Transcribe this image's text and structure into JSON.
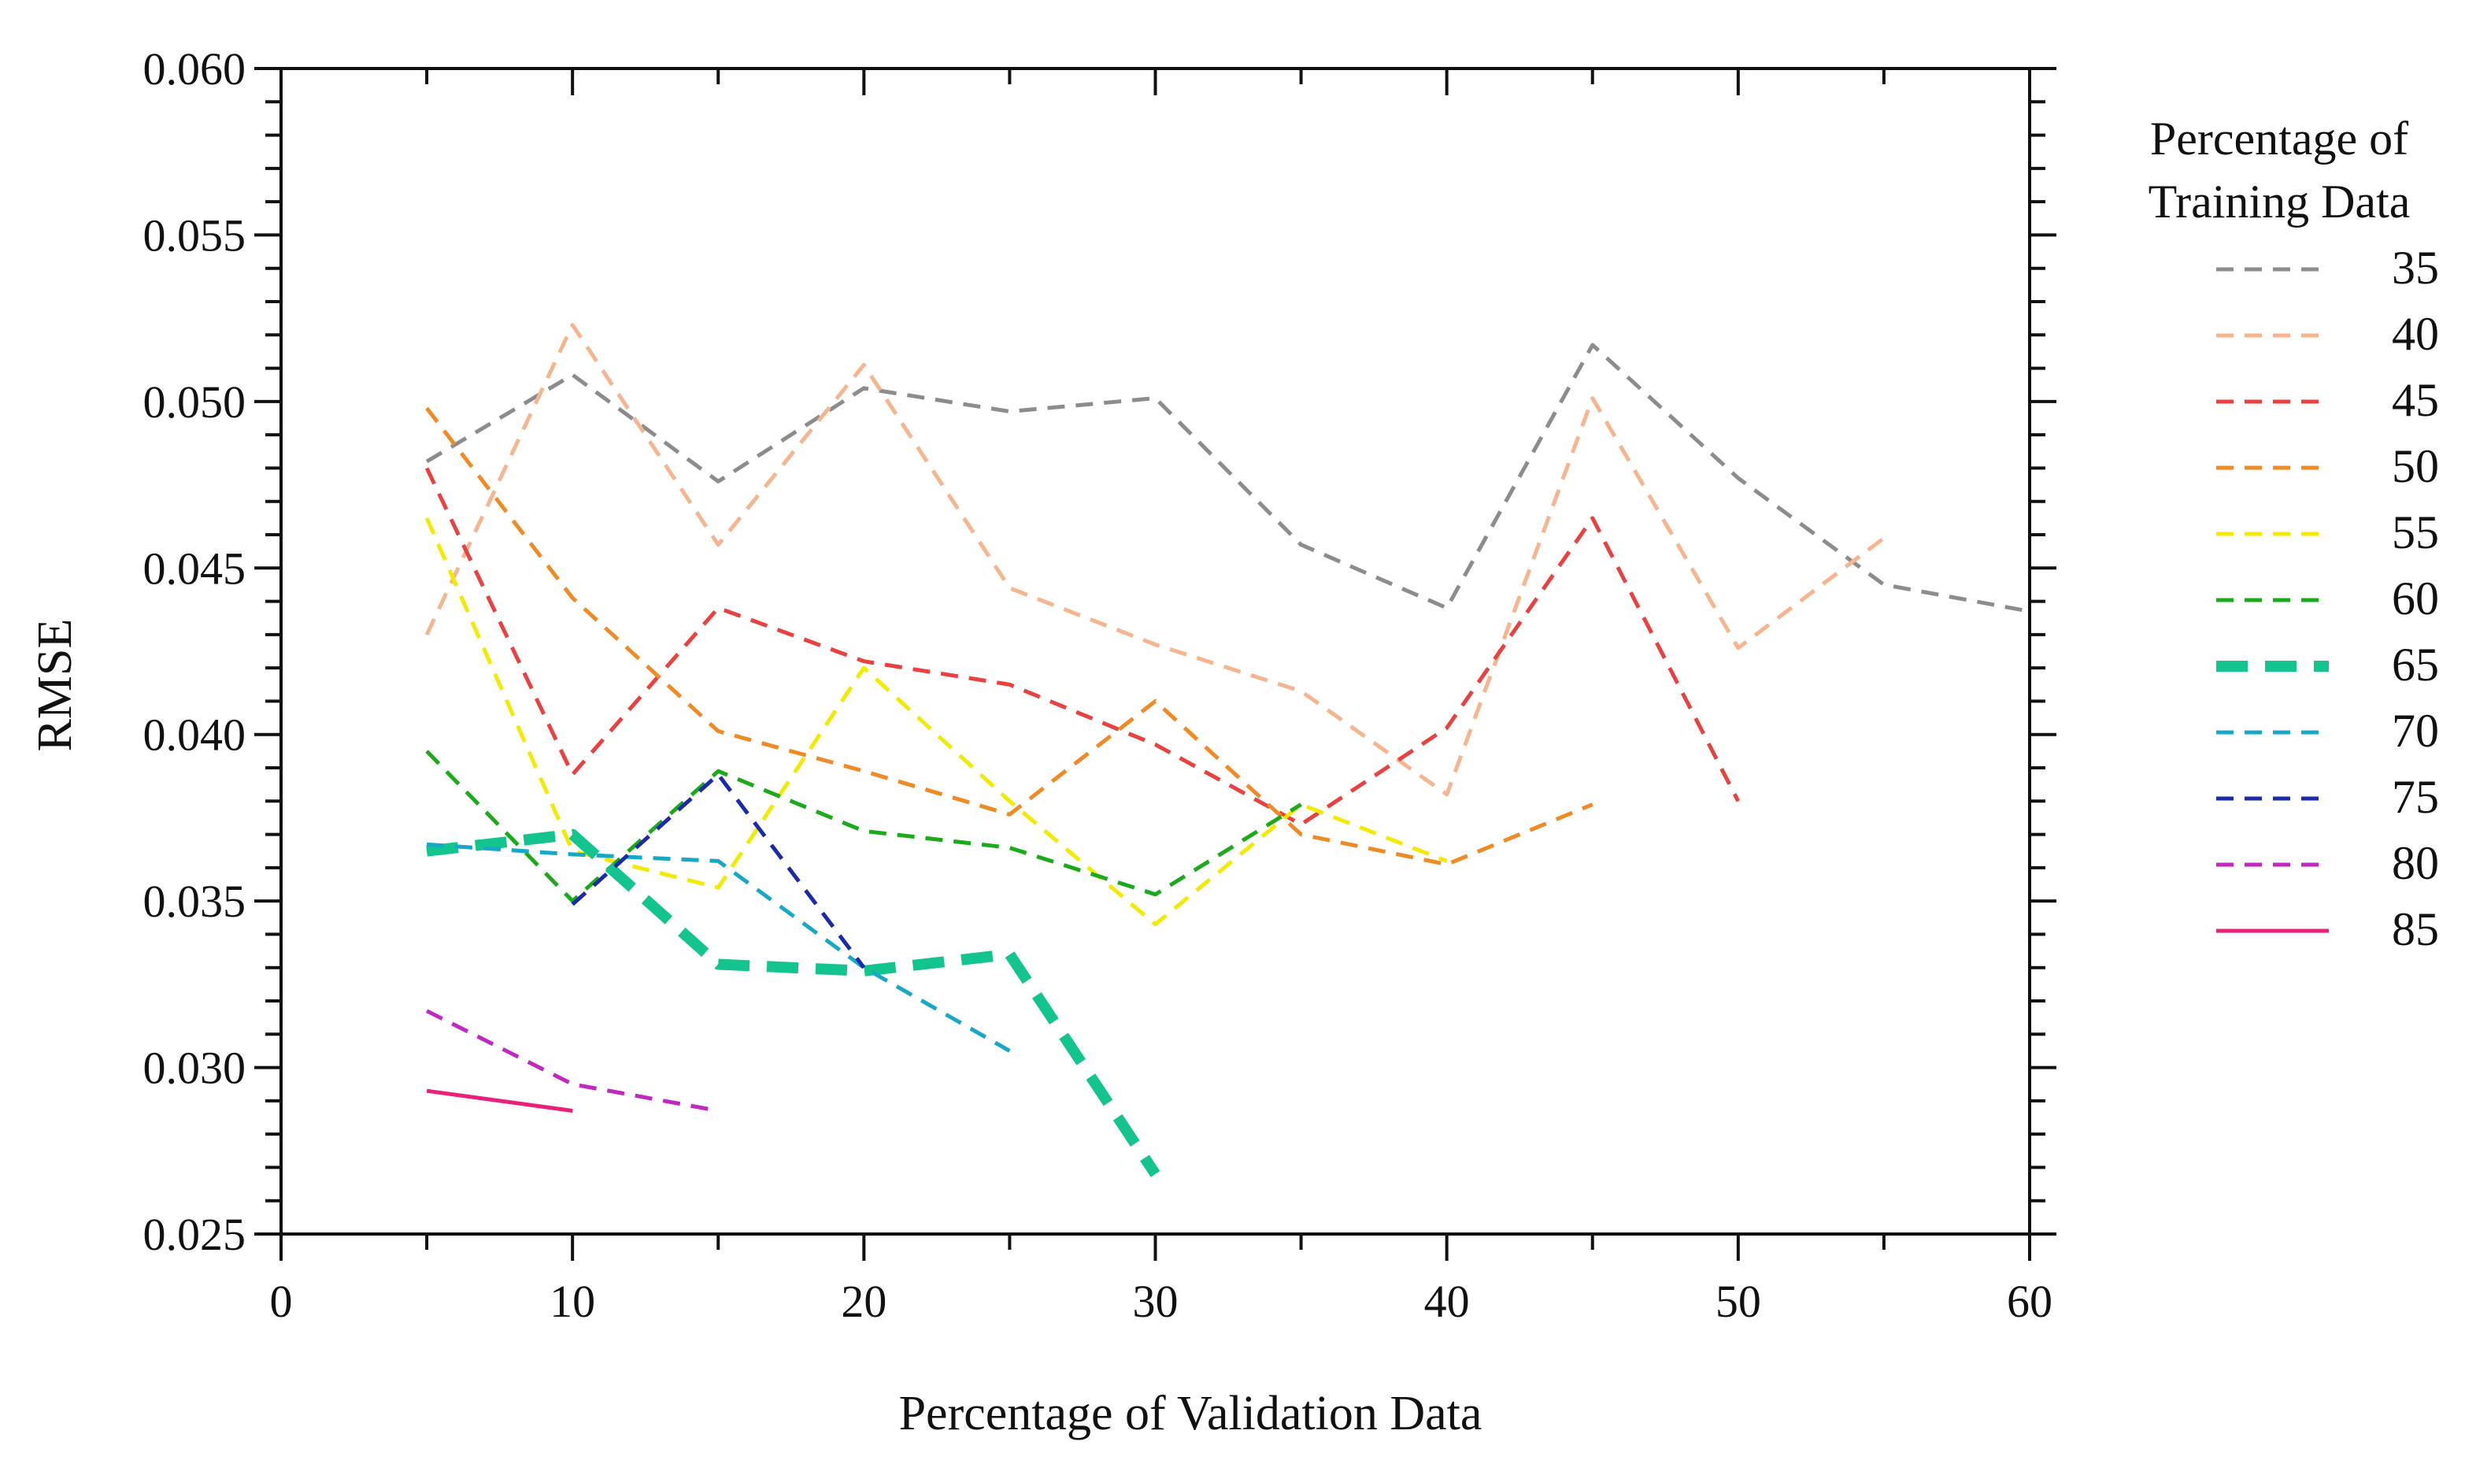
{
  "chart_data": {
    "type": "line",
    "xlabel": "Percentage of Validation Data",
    "ylabel": "RMSE",
    "xlim": [
      0,
      60
    ],
    "ylim": [
      0.025,
      0.06
    ],
    "x_ticks": [
      "0",
      "10",
      "20",
      "30",
      "40",
      "50",
      "60"
    ],
    "y_ticks": [
      "0.025",
      "0.030",
      "0.035",
      "0.040",
      "0.045",
      "0.050",
      "0.055",
      "0.060"
    ],
    "grid": false,
    "legend": {
      "title_line1": "Percentage of",
      "title_line2": "Training  Data",
      "placement": "right"
    },
    "series": [
      {
        "name": "35",
        "color": "#8c8c8c",
        "style": "dashed",
        "x": [
          5,
          10,
          15,
          20,
          25,
          30,
          35,
          40,
          45,
          50,
          55,
          60
        ],
        "values": [
          0.0482,
          0.0508,
          0.0476,
          0.0504,
          0.0497,
          0.0501,
          0.0457,
          0.0438,
          0.0517,
          0.0477,
          0.0445,
          0.0437
        ]
      },
      {
        "name": "40",
        "color": "#f6b58e",
        "style": "dashed",
        "x": [
          5,
          10,
          15,
          20,
          25,
          30,
          35,
          40,
          45,
          50,
          55
        ],
        "values": [
          0.043,
          0.0523,
          0.0457,
          0.0511,
          0.0444,
          0.0427,
          0.0413,
          0.0382,
          0.0501,
          0.0426,
          0.0459
        ]
      },
      {
        "name": "45",
        "color": "#e8413f",
        "style": "dashed",
        "x": [
          5,
          10,
          15,
          20,
          25,
          30,
          35,
          40,
          45,
          50
        ],
        "values": [
          0.048,
          0.0388,
          0.0438,
          0.0422,
          0.0415,
          0.0397,
          0.0373,
          0.0402,
          0.0465,
          0.038
        ]
      },
      {
        "name": "50",
        "color": "#f08a24",
        "style": "dashed",
        "x": [
          5,
          10,
          15,
          20,
          25,
          30,
          35,
          40,
          45
        ],
        "values": [
          0.0498,
          0.0441,
          0.0401,
          0.0389,
          0.0376,
          0.041,
          0.037,
          0.0361,
          0.0379
        ]
      },
      {
        "name": "55",
        "color": "#f2ea00",
        "style": "dashed",
        "x": [
          5,
          10,
          15,
          20,
          25,
          30,
          35,
          40
        ],
        "values": [
          0.0465,
          0.0365,
          0.0354,
          0.042,
          0.038,
          0.0343,
          0.0379,
          0.0362
        ]
      },
      {
        "name": "60",
        "color": "#1aaa1a",
        "style": "dashed",
        "x": [
          5,
          10,
          15,
          20,
          25,
          30,
          35
        ],
        "values": [
          0.0395,
          0.035,
          0.0389,
          0.0371,
          0.0366,
          0.0352,
          0.0379
        ]
      },
      {
        "name": "65",
        "color": "#14c48e",
        "style": "bold-dashed",
        "x": [
          5,
          10,
          15,
          20,
          25,
          30
        ],
        "values": [
          0.0365,
          0.037,
          0.0331,
          0.0329,
          0.0334,
          0.0268
        ]
      },
      {
        "name": "70",
        "color": "#17a8c8",
        "style": "dashed",
        "x": [
          5,
          10,
          15,
          20,
          25
        ],
        "values": [
          0.0367,
          0.0364,
          0.0362,
          0.033,
          0.0305
        ]
      },
      {
        "name": "75",
        "color": "#1a2aa8",
        "style": "dashed",
        "x": [
          10,
          15,
          20
        ],
        "values": [
          0.0349,
          0.0388,
          0.033
        ]
      },
      {
        "name": "80",
        "color": "#c028c0",
        "style": "dashed",
        "x": [
          5,
          10,
          15
        ],
        "values": [
          0.0317,
          0.0295,
          0.0287
        ]
      },
      {
        "name": "85",
        "color": "#e8207a",
        "style": "solid",
        "x": [
          5,
          10
        ],
        "values": [
          0.0293,
          0.0287
        ]
      }
    ]
  }
}
